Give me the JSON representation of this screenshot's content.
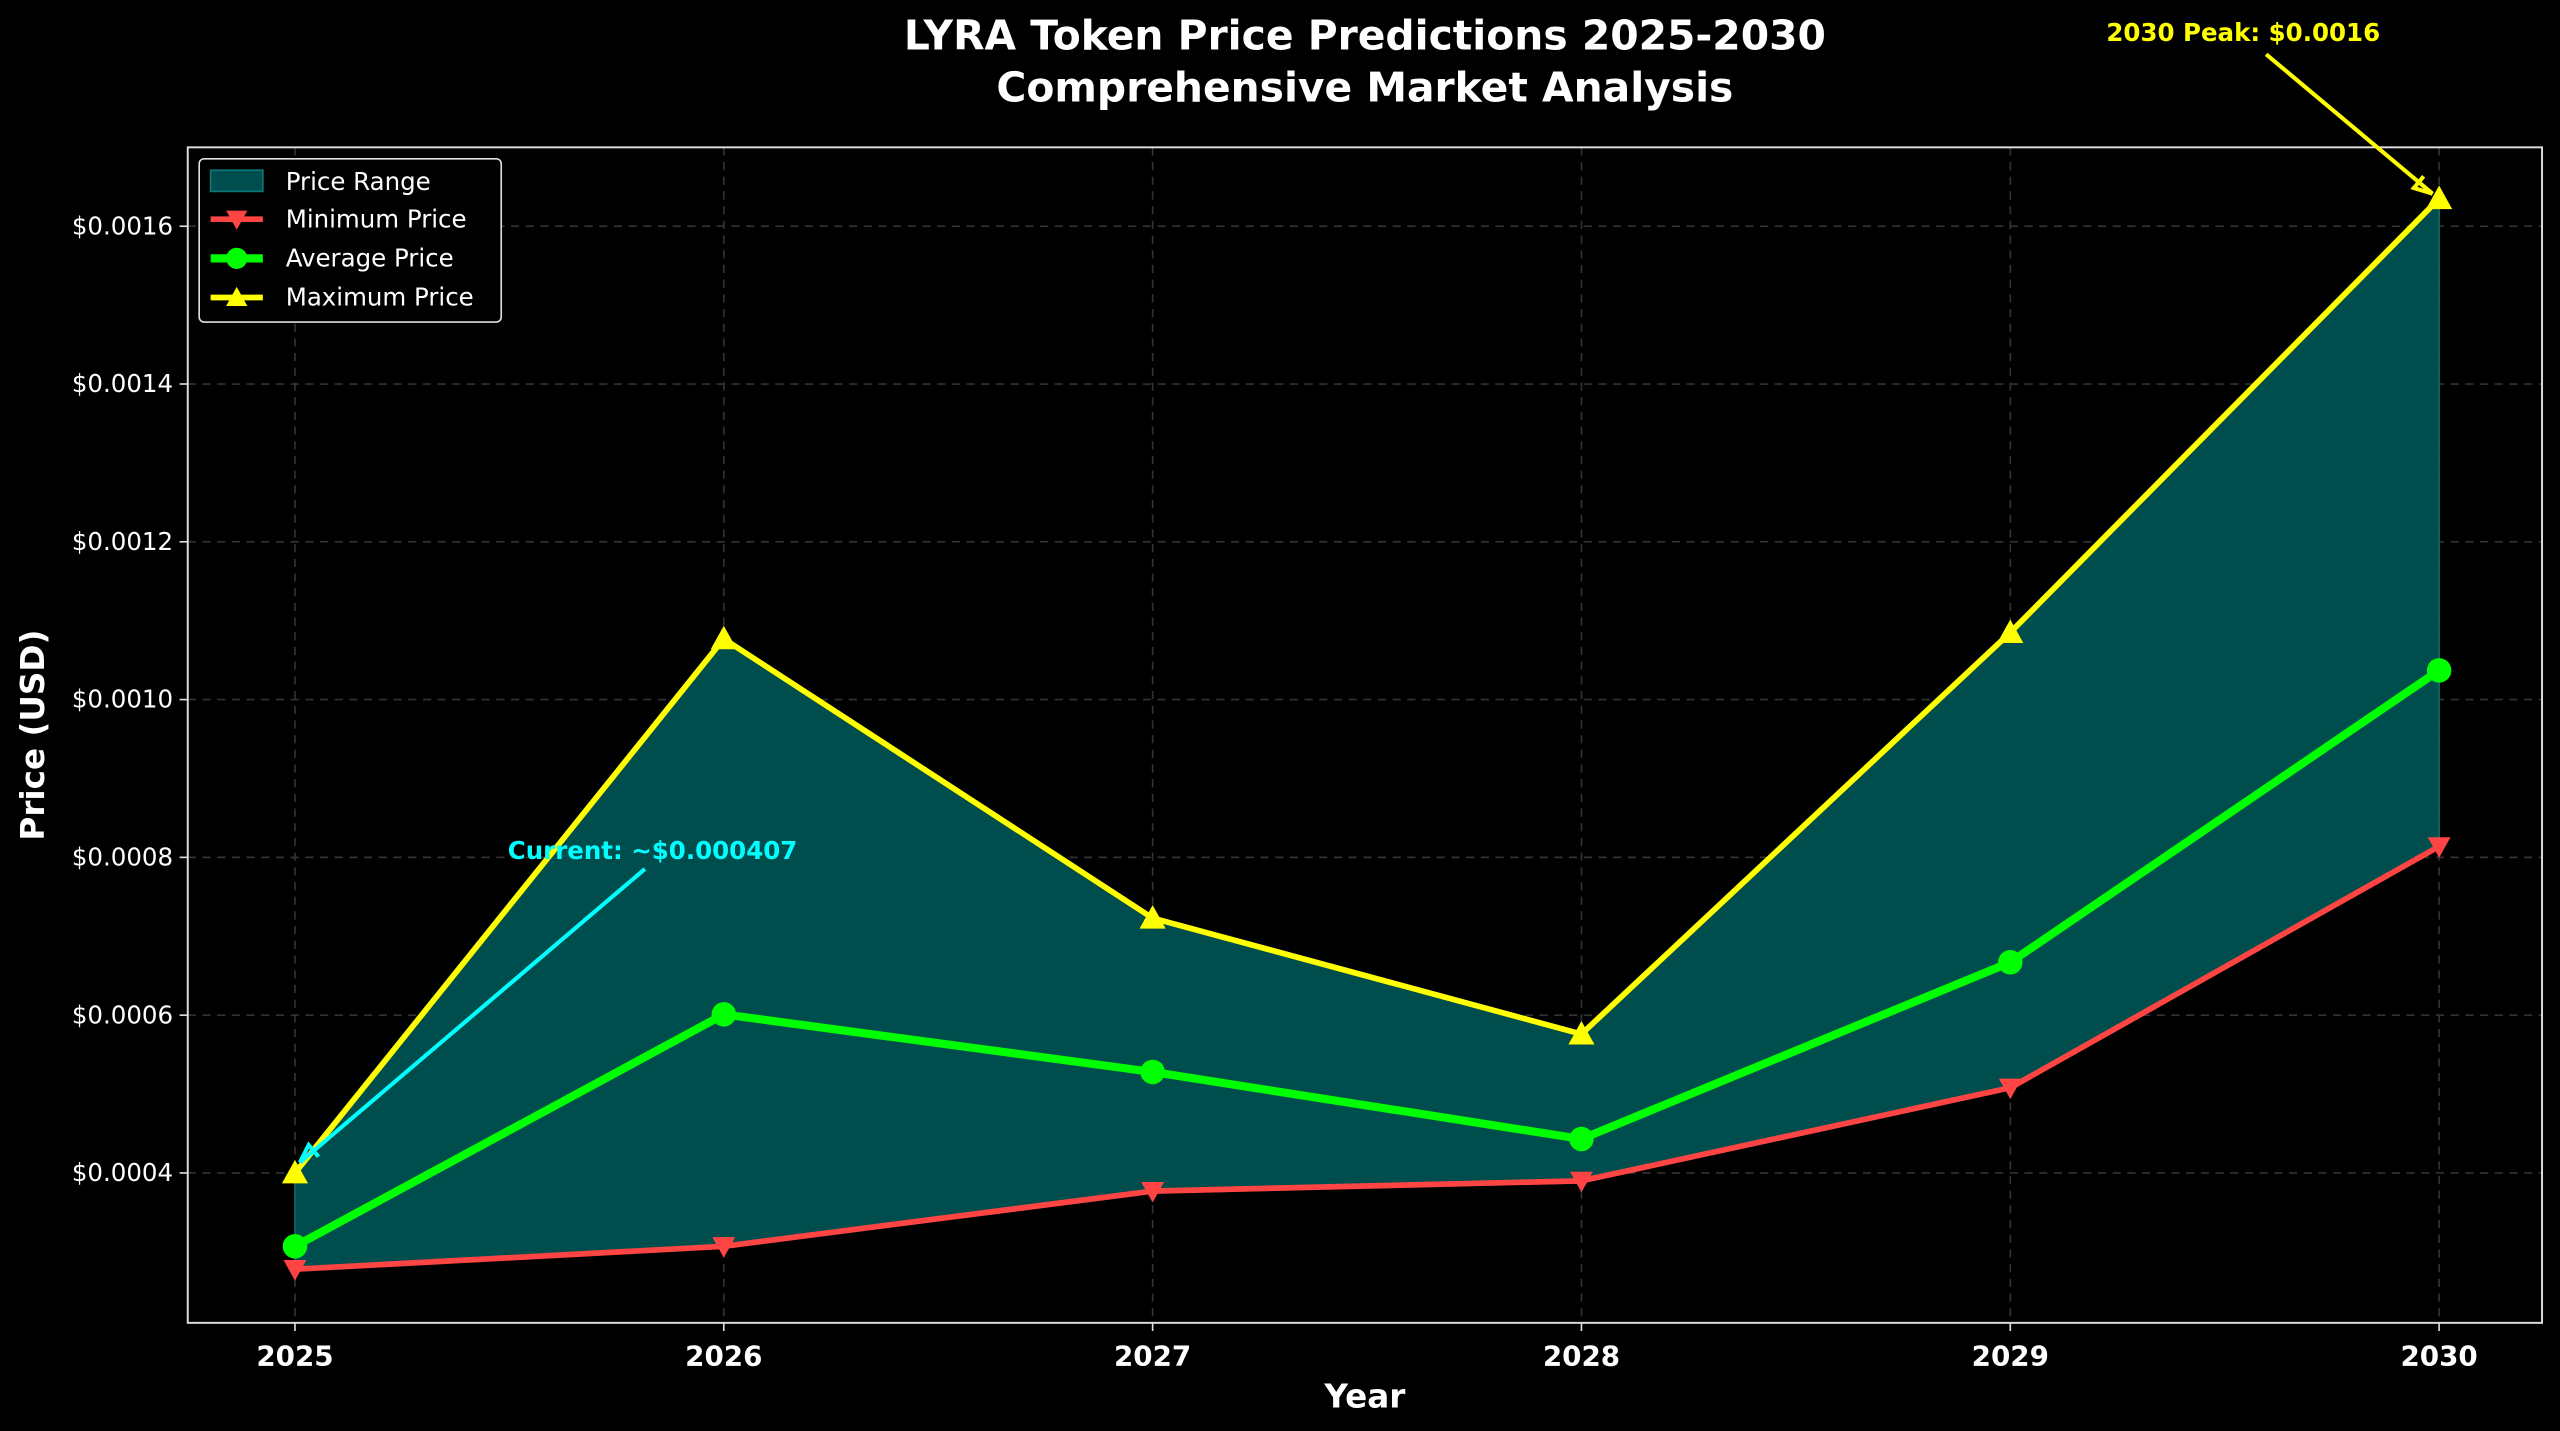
{
  "chart_data": {
    "type": "line",
    "title": "LYRA Token Price Predictions 2025-2030",
    "subtitle": "Comprehensive Market Analysis",
    "xlabel": "Year",
    "ylabel": "Price (USD)",
    "x": [
      2025,
      2026,
      2027,
      2028,
      2029,
      2030
    ],
    "x_tick_labels": [
      "2025",
      "2026",
      "2027",
      "2028",
      "2029",
      "2030"
    ],
    "xlim": [
      2024.75,
      2030.24
    ],
    "ylim": [
      0.00021,
      0.0017
    ],
    "y_ticks": [
      0.0004,
      0.0006,
      0.0008,
      0.001,
      0.0012,
      0.0014,
      0.0016
    ],
    "y_tick_labels": [
      "$0.0004",
      "$0.0006",
      "$0.0008",
      "$0.0010",
      "$0.0012",
      "$0.0014",
      "$0.0016"
    ],
    "grid": true,
    "legend_position": "top-left",
    "range_fill": {
      "name": "Price Range",
      "color": "#004d4d"
    },
    "series": [
      {
        "name": "Minimum Price",
        "color": "#ff4444",
        "marker": "triangle-down",
        "values": [
          0.000278,
          0.000307,
          0.000377,
          0.00039,
          0.000508,
          0.000814
        ]
      },
      {
        "name": "Average Price",
        "color": "#00ff00",
        "marker": "circle",
        "values": [
          0.000307,
          0.000601,
          0.000528,
          0.000443,
          0.000667,
          0.001037
        ]
      },
      {
        "name": "Maximum Price",
        "color": "#ffff00",
        "marker": "triangle-up",
        "values": [
          0.0004,
          0.001077,
          0.000723,
          0.000576,
          0.001085,
          0.001635
        ]
      }
    ],
    "annotations": [
      {
        "text": "Current: ~$0.000407",
        "color": "#00ffff",
        "x": 2025,
        "y": 0.000407
      },
      {
        "text": "2030 Peak: $0.0016",
        "color": "#ffff00",
        "x": 2030,
        "y": 0.001635
      }
    ]
  }
}
